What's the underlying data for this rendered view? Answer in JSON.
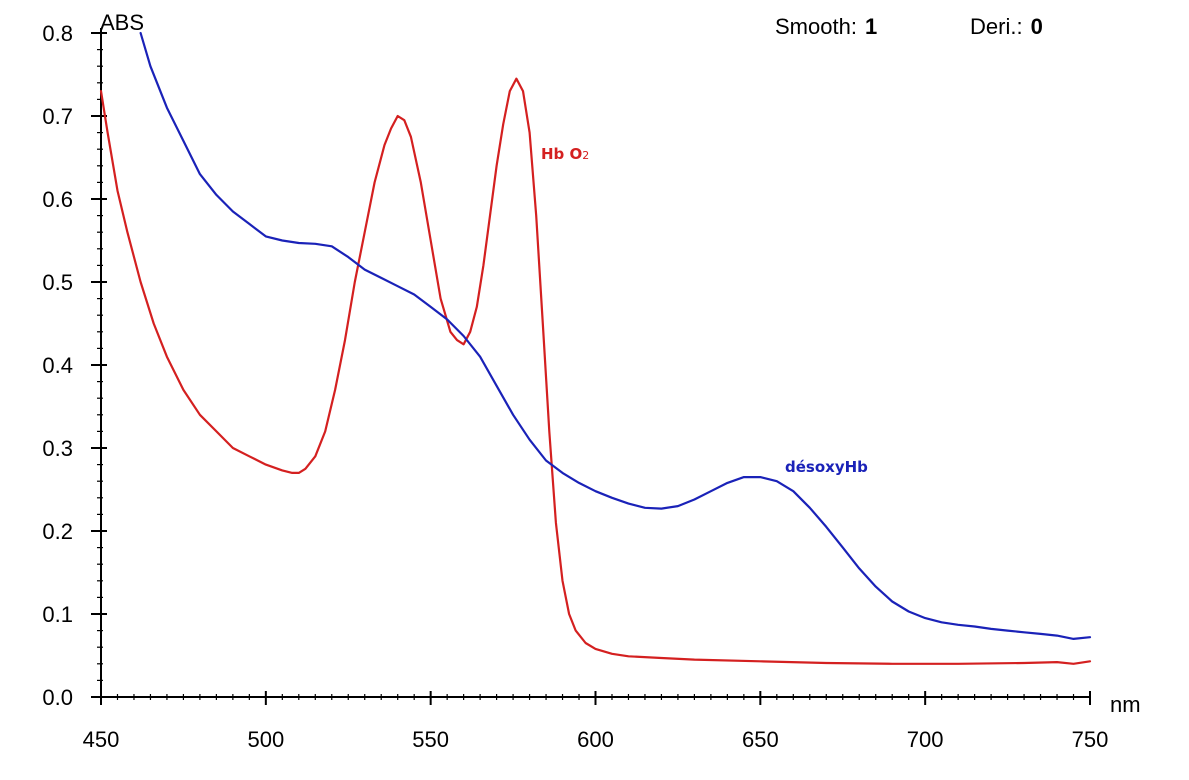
{
  "chart_data": {
    "type": "line",
    "title": "",
    "ylabel": "ABS",
    "xlabel": "nm",
    "header": {
      "smooth_label": "Smooth:",
      "smooth_value": "1",
      "deri_label": "Deri.:",
      "deri_value": "0"
    },
    "xlim": [
      450,
      750
    ],
    "ylim": [
      0.0,
      0.8
    ],
    "x_ticks": [
      450,
      500,
      550,
      600,
      650,
      700,
      750
    ],
    "x_tick_labels": [
      "450",
      "500",
      "550",
      "600",
      "650",
      "700",
      "750"
    ],
    "y_ticks": [
      0.0,
      0.1,
      0.2,
      0.3,
      0.4,
      0.5,
      0.6,
      0.7,
      0.8
    ],
    "y_tick_labels": [
      "0.0",
      "0.1",
      "0.2",
      "0.3",
      "0.4",
      "0.5",
      "0.6",
      "0.7",
      "0.8"
    ],
    "grid": false,
    "series": [
      {
        "name": "Hb O2",
        "label_main": "Hb O",
        "label_sub": "2",
        "color": "#d42020",
        "points": [
          [
            450,
            0.73
          ],
          [
            452,
            0.68
          ],
          [
            455,
            0.61
          ],
          [
            458,
            0.56
          ],
          [
            462,
            0.5
          ],
          [
            466,
            0.45
          ],
          [
            470,
            0.41
          ],
          [
            475,
            0.37
          ],
          [
            480,
            0.34
          ],
          [
            485,
            0.32
          ],
          [
            490,
            0.3
          ],
          [
            495,
            0.29
          ],
          [
            500,
            0.28
          ],
          [
            505,
            0.273
          ],
          [
            508,
            0.27
          ],
          [
            510,
            0.27
          ],
          [
            512,
            0.275
          ],
          [
            515,
            0.29
          ],
          [
            518,
            0.32
          ],
          [
            521,
            0.37
          ],
          [
            524,
            0.43
          ],
          [
            527,
            0.5
          ],
          [
            530,
            0.56
          ],
          [
            533,
            0.62
          ],
          [
            536,
            0.665
          ],
          [
            538,
            0.685
          ],
          [
            540,
            0.7
          ],
          [
            542,
            0.695
          ],
          [
            544,
            0.675
          ],
          [
            547,
            0.62
          ],
          [
            550,
            0.55
          ],
          [
            553,
            0.48
          ],
          [
            556,
            0.44
          ],
          [
            558,
            0.43
          ],
          [
            560,
            0.425
          ],
          [
            562,
            0.44
          ],
          [
            564,
            0.47
          ],
          [
            566,
            0.52
          ],
          [
            568,
            0.58
          ],
          [
            570,
            0.64
          ],
          [
            572,
            0.69
          ],
          [
            574,
            0.73
          ],
          [
            576,
            0.745
          ],
          [
            578,
            0.73
          ],
          [
            580,
            0.68
          ],
          [
            582,
            0.58
          ],
          [
            584,
            0.45
          ],
          [
            586,
            0.32
          ],
          [
            588,
            0.21
          ],
          [
            590,
            0.14
          ],
          [
            592,
            0.1
          ],
          [
            594,
            0.08
          ],
          [
            597,
            0.065
          ],
          [
            600,
            0.058
          ],
          [
            605,
            0.052
          ],
          [
            610,
            0.049
          ],
          [
            620,
            0.047
          ],
          [
            630,
            0.045
          ],
          [
            650,
            0.043
          ],
          [
            670,
            0.041
          ],
          [
            690,
            0.04
          ],
          [
            710,
            0.04
          ],
          [
            730,
            0.041
          ],
          [
            740,
            0.042
          ],
          [
            745,
            0.04
          ],
          [
            750,
            0.043
          ]
        ]
      },
      {
        "name": "désoxyHb",
        "label_main": "désoxyHb",
        "label_sub": "",
        "color": "#1a22b8",
        "points": [
          [
            462,
            0.8
          ],
          [
            465,
            0.76
          ],
          [
            470,
            0.71
          ],
          [
            475,
            0.67
          ],
          [
            480,
            0.63
          ],
          [
            485,
            0.605
          ],
          [
            490,
            0.585
          ],
          [
            495,
            0.57
          ],
          [
            500,
            0.555
          ],
          [
            505,
            0.55
          ],
          [
            510,
            0.547
          ],
          [
            515,
            0.546
          ],
          [
            520,
            0.543
          ],
          [
            525,
            0.53
          ],
          [
            530,
            0.515
          ],
          [
            535,
            0.505
          ],
          [
            540,
            0.495
          ],
          [
            545,
            0.485
          ],
          [
            550,
            0.47
          ],
          [
            555,
            0.455
          ],
          [
            560,
            0.435
          ],
          [
            565,
            0.41
          ],
          [
            570,
            0.375
          ],
          [
            575,
            0.34
          ],
          [
            580,
            0.31
          ],
          [
            585,
            0.285
          ],
          [
            590,
            0.27
          ],
          [
            595,
            0.258
          ],
          [
            600,
            0.248
          ],
          [
            605,
            0.24
          ],
          [
            610,
            0.233
          ],
          [
            615,
            0.228
          ],
          [
            620,
            0.227
          ],
          [
            625,
            0.23
          ],
          [
            630,
            0.238
          ],
          [
            635,
            0.248
          ],
          [
            640,
            0.258
          ],
          [
            645,
            0.265
          ],
          [
            650,
            0.265
          ],
          [
            655,
            0.26
          ],
          [
            660,
            0.248
          ],
          [
            665,
            0.228
          ],
          [
            670,
            0.205
          ],
          [
            675,
            0.18
          ],
          [
            680,
            0.155
          ],
          [
            685,
            0.133
          ],
          [
            690,
            0.115
          ],
          [
            695,
            0.103
          ],
          [
            700,
            0.095
          ],
          [
            705,
            0.09
          ],
          [
            710,
            0.087
          ],
          [
            715,
            0.085
          ],
          [
            720,
            0.082
          ],
          [
            725,
            0.08
          ],
          [
            730,
            0.078
          ],
          [
            735,
            0.076
          ],
          [
            740,
            0.074
          ],
          [
            745,
            0.07
          ],
          [
            750,
            0.072
          ]
        ]
      }
    ]
  }
}
